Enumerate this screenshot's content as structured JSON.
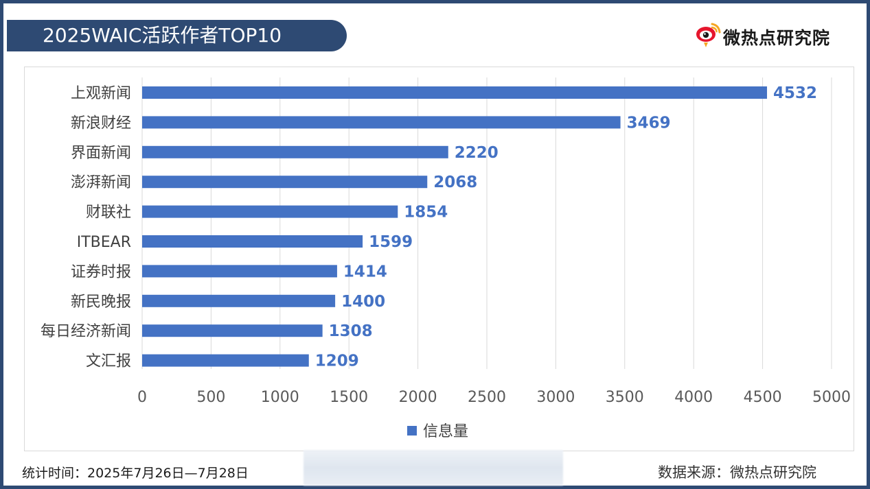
{
  "header": {
    "title": "2025WAIC活跃作者TOP10",
    "brand_name": "微热点研究院",
    "brand_icon": "weibo-eye-icon"
  },
  "colors": {
    "bar": "#4472c4",
    "frame": "#2e4a73",
    "label": "#4472c4",
    "grid": "#d9d9d9"
  },
  "chart_data": {
    "type": "bar",
    "orientation": "horizontal",
    "title": "",
    "xlabel": "",
    "ylabel": "",
    "categories": [
      "上观新闻",
      "新浪财经",
      "界面新闻",
      "澎湃新闻",
      "财联社",
      "ITBEAR",
      "证券时报",
      "新民晚报",
      "每日经济新闻",
      "文汇报"
    ],
    "series": [
      {
        "name": "信息量",
        "values": [
          4532,
          3469,
          2220,
          2068,
          1854,
          1599,
          1414,
          1400,
          1308,
          1209
        ]
      }
    ],
    "xlim": [
      0,
      5000
    ],
    "xticks": [
      0,
      500,
      1000,
      1500,
      2000,
      2500,
      3000,
      3500,
      4000,
      4500,
      5000
    ],
    "grid": "vertical",
    "legend": "bottom-center",
    "data_labels": true
  },
  "footer": {
    "stat_period": "统计时间：2025年7月26日—7月28日",
    "source": "数据来源：微热点研究院"
  }
}
